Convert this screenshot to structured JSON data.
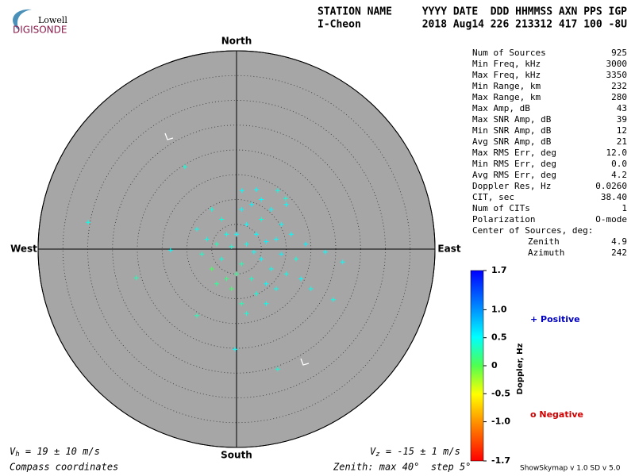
{
  "logo": {
    "top": "Lowell",
    "bottom": "DIGISONDE"
  },
  "header": {
    "row1_left": "STATION NAME",
    "row1_right": "YYYY DATE  DDD HHMMSS AXN PPS IGP",
    "row2_left": "I-Cheon",
    "row2_right": "2018 Aug14 226 213312 417 100 -8U"
  },
  "params": {
    "rows": [
      [
        "Num of Sources",
        "925"
      ],
      [
        "Min Freq, kHz",
        "3000"
      ],
      [
        "Max Freq, kHz",
        "3350"
      ],
      [
        "Min Range, km",
        "232"
      ],
      [
        "Max Range, km",
        "280"
      ],
      [
        "Max Amp, dB",
        "43"
      ],
      [
        "Max SNR Amp, dB",
        "39"
      ],
      [
        "Min SNR Amp, dB",
        "12"
      ],
      [
        "Avg SNR Amp, dB",
        "21"
      ],
      [
        "Max RMS Err, deg",
        "12.0"
      ],
      [
        "Min RMS Err, deg",
        "0.0"
      ],
      [
        "Avg RMS Err, deg",
        "4.2"
      ],
      [
        "Doppler Res, Hz",
        "0.0260"
      ],
      [
        "CIT, sec",
        "38.40"
      ],
      [
        "Num of CITs",
        "1"
      ],
      [
        "Polarization",
        "O-mode"
      ]
    ],
    "center_title": "Center of Sources, deg:",
    "center_rows": [
      [
        "Zenith",
        "4.9"
      ],
      [
        "Azimuth",
        "242"
      ]
    ]
  },
  "footer": {
    "vh_symbol": "V",
    "vh_sub": "h",
    "vh_text": " = 19 ± 10 m/s",
    "vz_symbol": "V",
    "vz_sub": "z",
    "vz_text": " = -15 ± 1 m/s",
    "coords": "Compass coordinates",
    "zenith": "Zenith: max 40°  step 5°",
    "version": "ShowSkymap v 1.0   SD v 5.0"
  },
  "chart_data": {
    "type": "scatter",
    "directions": {
      "north": "North",
      "south": "South",
      "west": "West",
      "east": "East"
    },
    "rlim": [
      0,
      40
    ],
    "rticks": [
      5,
      10,
      15,
      20,
      25,
      30,
      35,
      40
    ],
    "x": [
      3.5,
      2,
      5,
      1,
      6,
      -1,
      4,
      7,
      0,
      3,
      -3,
      8,
      9,
      -2,
      2,
      5,
      -4,
      6,
      10,
      -1,
      1,
      -5,
      4,
      11,
      -6,
      3,
      7,
      12,
      -2,
      0,
      8,
      -3,
      5,
      13,
      -7,
      1,
      9,
      6,
      -4,
      14,
      2,
      -8,
      10,
      -5,
      4,
      15,
      -10.4,
      -29.9,
      -20.2,
      -13.3,
      8.3,
      -0.3,
      19.5,
      -8,
      21.4,
      17.9,
      1.1,
      8.3,
      9.9
    ],
    "y": [
      -0.6,
      1,
      -2,
      -3,
      1.5,
      0.5,
      3,
      -4,
      -5,
      -6,
      -2,
      2,
      -1,
      3,
      5,
      6,
      1,
      -7,
      -5,
      -8,
      8,
      -4,
      -9,
      3,
      2,
      9,
      8,
      -2,
      -6,
      3,
      -8,
      6,
      10,
      -6,
      -1,
      -11,
      5,
      -11,
      -7,
      1,
      -13,
      4,
      9,
      8,
      12,
      -8,
      16.6,
      5.4,
      -5.8,
      -0.2,
      -24.2,
      -20.2,
      -10.2,
      -13.4,
      -2.6,
      -0.6,
      11.8,
      11.8,
      10.2
    ],
    "doppler": [
      0.5,
      0.45,
      0.5,
      0.3,
      0.55,
      0.4,
      0.5,
      0.45,
      0.2,
      0.35,
      0.4,
      0.5,
      0.55,
      0.45,
      0.5,
      0.4,
      0.3,
      0.5,
      0.45,
      0.1,
      0.5,
      0.05,
      0.4,
      0.5,
      0.45,
      0.55,
      0.5,
      0.4,
      0.15,
      0.5,
      0.45,
      0.4,
      0.5,
      0.5,
      0.35,
      0.3,
      0.5,
      0.45,
      0.2,
      0.55,
      0.4,
      0.45,
      0.5,
      0.4,
      0.5,
      0.45,
      0.4,
      0.45,
      0.3,
      0.5,
      0.4,
      0.5,
      0.45,
      0.3,
      0.5,
      0.5,
      0.5,
      0.45,
      0.4
    ],
    "colorbar": {
      "label": "Doppler, Hz",
      "lim": [
        -1.7,
        1.7
      ],
      "ticks": [
        1.7,
        {
          "value": 1,
          "label": "1.0"
        },
        0.5,
        0,
        -0.5,
        {
          "value": -1,
          "label": "-1.0"
        },
        -1.7
      ]
    },
    "legend": {
      "positive": "+ Positive",
      "negative": "o Negative"
    }
  }
}
